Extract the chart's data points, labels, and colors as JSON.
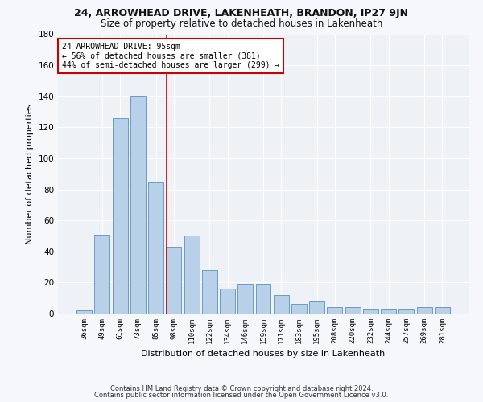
{
  "title1": "24, ARROWHEAD DRIVE, LAKENHEATH, BRANDON, IP27 9JN",
  "title2": "Size of property relative to detached houses in Lakenheath",
  "xlabel": "Distribution of detached houses by size in Lakenheath",
  "ylabel": "Number of detached properties",
  "footer1": "Contains HM Land Registry data © Crown copyright and database right 2024.",
  "footer2": "Contains public sector information licensed under the Open Government Licence v3.0.",
  "categories": [
    "36sqm",
    "49sqm",
    "61sqm",
    "73sqm",
    "85sqm",
    "98sqm",
    "110sqm",
    "122sqm",
    "134sqm",
    "146sqm",
    "159sqm",
    "171sqm",
    "183sqm",
    "195sqm",
    "208sqm",
    "220sqm",
    "232sqm",
    "244sqm",
    "257sqm",
    "269sqm",
    "281sqm"
  ],
  "values": [
    2,
    51,
    126,
    140,
    85,
    43,
    50,
    28,
    16,
    19,
    19,
    12,
    6,
    8,
    4,
    4,
    3,
    3,
    3,
    4,
    4
  ],
  "bar_color": "#b8d0e8",
  "bar_edge_color": "#5a8fc0",
  "vline_color": "#cc0000",
  "vline_x": 4.62,
  "annotation_text": "24 ARROWHEAD DRIVE: 95sqm\n← 56% of detached houses are smaller (381)\n44% of semi-detached houses are larger (299) →",
  "annotation_box_color": "#cc0000",
  "ylim": [
    0,
    180
  ],
  "yticks": [
    0,
    20,
    40,
    60,
    80,
    100,
    120,
    140,
    160,
    180
  ],
  "bg_color": "#eef2f7",
  "grid_color": "#ffffff",
  "fig_bg_color": "#f5f7fa",
  "title1_fontsize": 9,
  "title2_fontsize": 8.5,
  "bar_width": 0.85
}
